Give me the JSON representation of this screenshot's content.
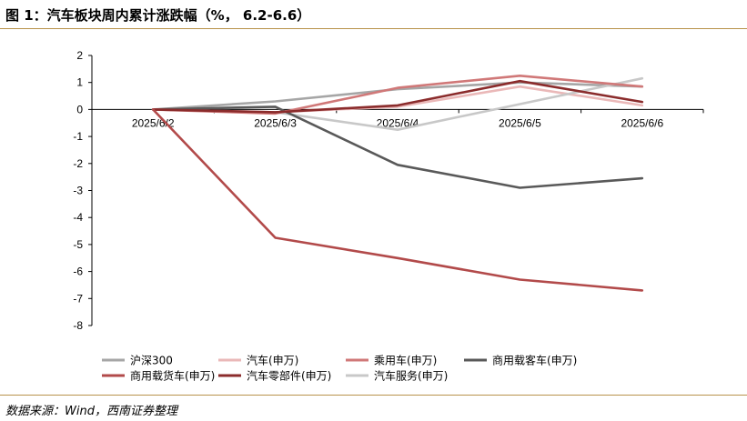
{
  "header": {
    "title": "图 1：汽车板块周内累计涨跌幅（%， 6.2-6.6）"
  },
  "footer": {
    "source": "数据来源：Wind，西南证券整理"
  },
  "chart_data": {
    "type": "line",
    "title": "图 1：汽车板块周内累计涨跌幅（%， 6.2-6.6）",
    "xlabel": "",
    "ylabel": "",
    "categories": [
      "2025/6/2",
      "2025/6/3",
      "2025/6/4",
      "2025/6/5",
      "2025/6/6"
    ],
    "ylim": [
      -8,
      2
    ],
    "yticks": [
      2,
      1,
      0,
      -1,
      -2,
      -3,
      -4,
      -5,
      -6,
      -7,
      -8
    ],
    "grid": false,
    "legend_position": "bottom",
    "series": [
      {
        "name": "沪深300",
        "color": "#a6a6a6",
        "values": [
          0,
          0.3,
          0.75,
          1.0,
          0.85
        ]
      },
      {
        "name": "汽车(申万)",
        "color": "#eab8b8",
        "values": [
          0,
          -0.1,
          0.1,
          0.85,
          0.15
        ]
      },
      {
        "name": "乘用车(申万)",
        "color": "#d07878",
        "values": [
          0,
          -0.15,
          0.8,
          1.25,
          0.85
        ]
      },
      {
        "name": "商用载客车(申万)",
        "color": "#595959",
        "values": [
          0,
          0.1,
          -2.05,
          -2.9,
          -2.55
        ]
      },
      {
        "name": "商用载货车(申万)",
        "color": "#b24a4a",
        "values": [
          0,
          -4.75,
          -5.5,
          -6.3,
          -6.7
        ]
      },
      {
        "name": "汽车零部件(申万)",
        "color": "#8b2c2c",
        "values": [
          0,
          -0.1,
          0.15,
          1.05,
          0.28
        ]
      },
      {
        "name": "汽车服务(申万)",
        "color": "#c8c8c8",
        "values": [
          0,
          -0.1,
          -0.75,
          0.2,
          1.15
        ]
      }
    ]
  }
}
